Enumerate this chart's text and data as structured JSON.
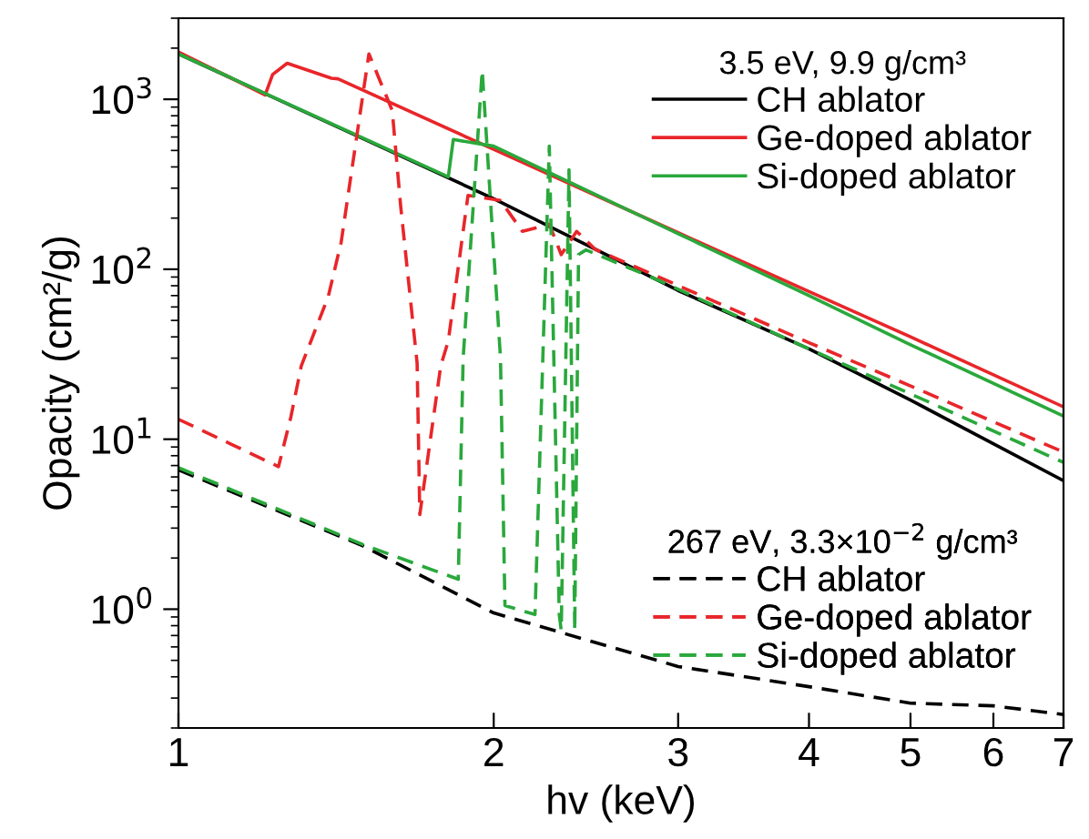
{
  "chart_data": {
    "type": "line",
    "xlabel": "hv (keV)",
    "ylabel": "Opacity (cm²/g)",
    "log": "xy",
    "xlim": [
      1,
      7
    ],
    "ylim": [
      0.2,
      3000
    ],
    "xticks": [
      1,
      2,
      3,
      4,
      5,
      6,
      7
    ],
    "yticks": [
      {
        "value": 1,
        "label": "10$^{0}$"
      },
      {
        "value": 10,
        "label": "10$^{1}$"
      },
      {
        "value": 100,
        "label": "10$^{2}$"
      },
      {
        "value": 1000,
        "label": "10$^{3}$"
      }
    ],
    "grid": false,
    "legend": "right",
    "marker": "none",
    "annotations": [
      "3.5 eV, 9.9 g/cm³",
      "267 eV, 3.3×10$^{−2}$ g/cm³"
    ],
    "series": [
      {
        "name": "CH ablator",
        "color": "#000000",
        "line_style": "solid",
        "x": [
          1,
          2,
          3,
          4,
          5,
          7
        ],
        "values": [
          1850,
          260,
          75,
          34,
          17,
          5.7
        ]
      },
      {
        "name": "Ge-doped ablator",
        "color": "#e8262a",
        "line_style": "solid",
        "x": [
          1,
          1.21,
          1.23,
          1.27,
          1.4,
          1.42,
          2,
          3,
          4,
          5,
          7
        ],
        "values": [
          1900,
          1060,
          1400,
          1630,
          1330,
          1320,
          507,
          164,
          74,
          40,
          15.5
        ]
      },
      {
        "name": "Si-doped ablator",
        "color": "#2aa83c",
        "line_style": "solid",
        "x": [
          1,
          1.81,
          1.83,
          2,
          3,
          4,
          5,
          7
        ],
        "values": [
          1850,
          350,
          580,
          530,
          162,
          70,
          36,
          13.7
        ]
      },
      {
        "name": "CH ablator",
        "color": "#000000",
        "line_style": "dashed",
        "x": [
          1,
          1.5,
          2,
          3,
          4,
          5,
          6,
          7
        ],
        "values": [
          6.6,
          2.36,
          0.95,
          0.46,
          0.35,
          0.28,
          0.27,
          0.24
        ]
      },
      {
        "name": "Ge-doped ablator",
        "color": "#e8262a",
        "line_style": "dashed",
        "x": [
          1,
          1.246,
          1.28,
          1.31,
          1.39,
          1.43,
          1.52,
          1.6,
          1.63,
          1.69,
          1.7,
          1.78,
          1.81,
          1.89,
          2.03,
          2.13,
          2.26,
          2.32,
          2.4,
          2.5,
          4,
          5,
          7
        ],
        "values": [
          13.1,
          6.9,
          13.4,
          27,
          69,
          144,
          1850,
          860,
          235,
          28,
          3.6,
          27,
          38,
          272,
          254,
          167,
          184,
          122,
          167,
          131,
          37,
          20.6,
          8.4
        ]
      },
      {
        "name": "Si-doped ablator",
        "color": "#2aa83c",
        "line_style": "dashed",
        "x": [
          1,
          1.5,
          1.85,
          1.87,
          1.95,
          2.03,
          2.05,
          2.19,
          2.26,
          2.31,
          2.32,
          2.36,
          2.39,
          2.41,
          2.45,
          2.85,
          4,
          5,
          7
        ],
        "values": [
          6.8,
          2.4,
          1.5,
          30,
          1480,
          30,
          1.05,
          0.93,
          530,
          0.93,
          0.75,
          385,
          0.75,
          122,
          130,
          88,
          34,
          18.5,
          7.3
        ]
      }
    ]
  }
}
